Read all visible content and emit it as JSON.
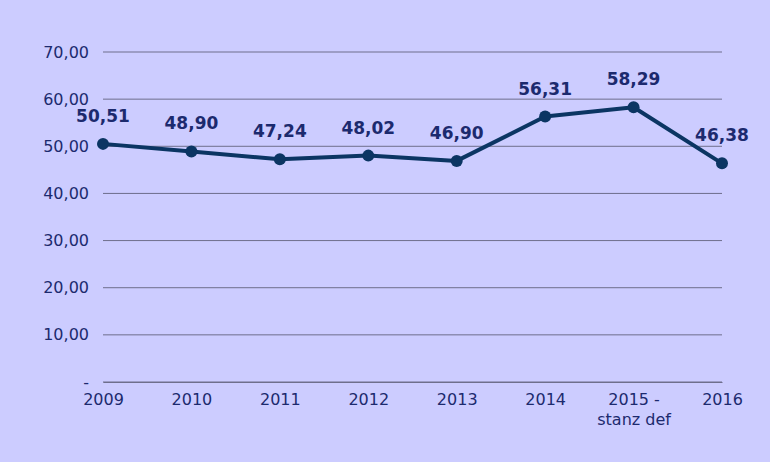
{
  "chart_data": {
    "type": "line",
    "categories": [
      "2009",
      "2010",
      "2011",
      "2012",
      "2013",
      "2014",
      "2015 - stanz def",
      "2016"
    ],
    "values": [
      50.51,
      48.9,
      47.24,
      48.02,
      46.9,
      56.31,
      58.29,
      46.38
    ],
    "value_labels": [
      "50,51",
      "48,90",
      "47,24",
      "48,02",
      "46,90",
      "56,31",
      "58,29",
      "46,38"
    ],
    "color": "#0b3563",
    "marker": "circle",
    "ylim": [
      0,
      70
    ],
    "yticks": [
      {
        "value": 0,
        "label": "-"
      },
      {
        "value": 10,
        "label": "10,00"
      },
      {
        "value": 20,
        "label": "20,00"
      },
      {
        "value": 30,
        "label": "30,00"
      },
      {
        "value": 40,
        "label": "40,00"
      },
      {
        "value": 50,
        "label": "50,00"
      },
      {
        "value": 60,
        "label": "60,00"
      },
      {
        "value": 70,
        "label": "70,00"
      }
    ],
    "grid": true,
    "data_labels": true
  }
}
